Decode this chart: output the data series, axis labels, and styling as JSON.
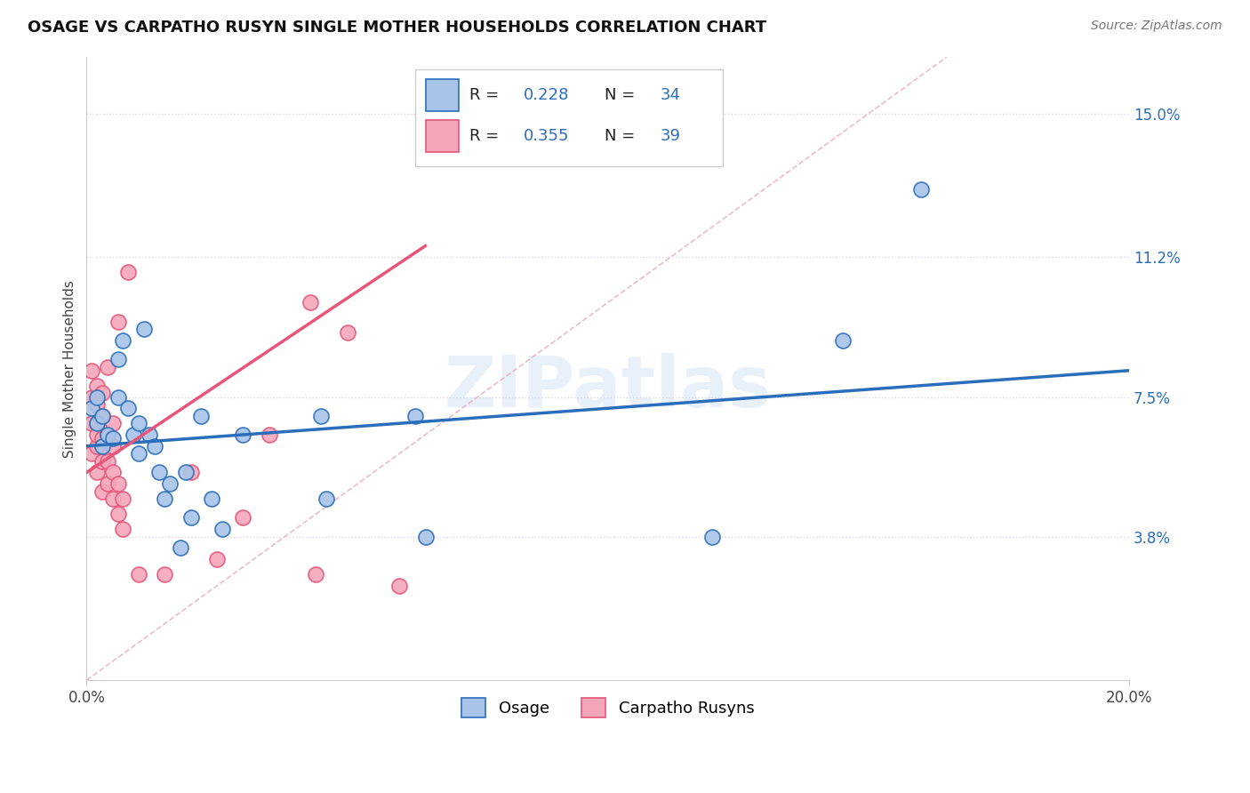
{
  "title": "OSAGE VS CARPATHO RUSYN SINGLE MOTHER HOUSEHOLDS CORRELATION CHART",
  "source": "Source: ZipAtlas.com",
  "ylabel": "Single Mother Households",
  "xlim": [
    0.0,
    0.2
  ],
  "ylim": [
    0.0,
    0.165
  ],
  "ytick_right_labels": [
    "",
    "3.8%",
    "7.5%",
    "11.2%",
    "15.0%"
  ],
  "ytick_right_values": [
    0.0,
    0.038,
    0.075,
    0.112,
    0.15
  ],
  "R_osage": 0.228,
  "N_osage": 34,
  "R_carpatho": 0.355,
  "N_carpatho": 39,
  "osage_color": "#a8c4e8",
  "carpatho_color": "#f4a7b9",
  "osage_line_color": "#2a6ebb",
  "carpatho_line_color": "#e8557a",
  "diagonal_color": "#e8a0b0",
  "background_color": "#ffffff",
  "grid_color": "#d8d8e8",
  "osage_x": [
    0.001,
    0.002,
    0.002,
    0.003,
    0.003,
    0.004,
    0.005,
    0.006,
    0.006,
    0.007,
    0.008,
    0.009,
    0.01,
    0.01,
    0.011,
    0.012,
    0.013,
    0.014,
    0.015,
    0.016,
    0.018,
    0.019,
    0.02,
    0.022,
    0.024,
    0.026,
    0.03,
    0.045,
    0.046,
    0.063,
    0.065,
    0.12,
    0.145,
    0.16
  ],
  "osage_y": [
    0.072,
    0.068,
    0.075,
    0.062,
    0.07,
    0.065,
    0.064,
    0.085,
    0.075,
    0.09,
    0.072,
    0.065,
    0.068,
    0.06,
    0.093,
    0.065,
    0.062,
    0.055,
    0.048,
    0.052,
    0.035,
    0.055,
    0.043,
    0.07,
    0.048,
    0.04,
    0.065,
    0.07,
    0.048,
    0.07,
    0.038,
    0.038,
    0.09,
    0.13
  ],
  "carpatho_x": [
    0.001,
    0.001,
    0.001,
    0.001,
    0.002,
    0.002,
    0.002,
    0.002,
    0.002,
    0.002,
    0.003,
    0.003,
    0.003,
    0.003,
    0.003,
    0.004,
    0.004,
    0.004,
    0.004,
    0.005,
    0.005,
    0.005,
    0.005,
    0.006,
    0.006,
    0.006,
    0.007,
    0.007,
    0.008,
    0.01,
    0.015,
    0.02,
    0.025,
    0.03,
    0.035,
    0.043,
    0.044,
    0.05,
    0.06
  ],
  "carpatho_y": [
    0.06,
    0.068,
    0.075,
    0.082,
    0.055,
    0.062,
    0.068,
    0.073,
    0.078,
    0.065,
    0.05,
    0.058,
    0.064,
    0.07,
    0.076,
    0.052,
    0.058,
    0.065,
    0.083,
    0.048,
    0.055,
    0.062,
    0.068,
    0.044,
    0.052,
    0.095,
    0.04,
    0.048,
    0.108,
    0.028,
    0.028,
    0.055,
    0.032,
    0.043,
    0.065,
    0.1,
    0.028,
    0.092,
    0.025
  ],
  "osage_trend_x0": 0.0,
  "osage_trend_y0": 0.062,
  "osage_trend_x1": 0.2,
  "osage_trend_y1": 0.082,
  "carpatho_trend_x0": 0.0,
  "carpatho_trend_y0": 0.055,
  "carpatho_trend_x1": 0.065,
  "carpatho_trend_y1": 0.115,
  "watermark": "ZIPatlas"
}
